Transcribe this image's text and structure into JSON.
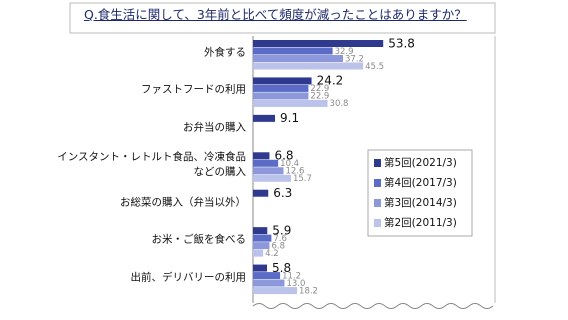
{
  "chart_data": {
    "type": "hbar",
    "title": "Q.食生活に関して、3年前と比べて頻度が減ったことはありますか？",
    "categories": [
      "外食する",
      "ファストフードの利用",
      "お弁当の購入",
      "インスタント・レトルト食品、冷凍食品\nなどの購入",
      "お総菜の購入（弁当以外）",
      "お米・ご飯を食べる",
      "出前、デリバリーの利用"
    ],
    "series": [
      {
        "name": "第5回(2021/3)",
        "color": "#2f3a8f",
        "values": [
          53.8,
          24.2,
          9.1,
          6.8,
          6.3,
          5.9,
          5.8
        ]
      },
      {
        "name": "第4回(2017/3)",
        "color": "#5b6cc6",
        "values": [
          32.9,
          22.9,
          null,
          10.4,
          null,
          7.6,
          11.2
        ]
      },
      {
        "name": "第3回(2014/3)",
        "color": "#8c98da",
        "values": [
          37.2,
          22.9,
          null,
          12.6,
          null,
          6.8,
          13.0
        ],
        "value_labels": [
          "37.2",
          "22.9",
          null,
          "12.6",
          null,
          "6.8",
          "13.0"
        ]
      },
      {
        "name": "第2回(2011/3)",
        "color": "#bcc3ea",
        "values": [
          45.5,
          30.8,
          null,
          15.7,
          null,
          4.2,
          18.2
        ]
      }
    ],
    "xlim": [
      0,
      100
    ]
  }
}
